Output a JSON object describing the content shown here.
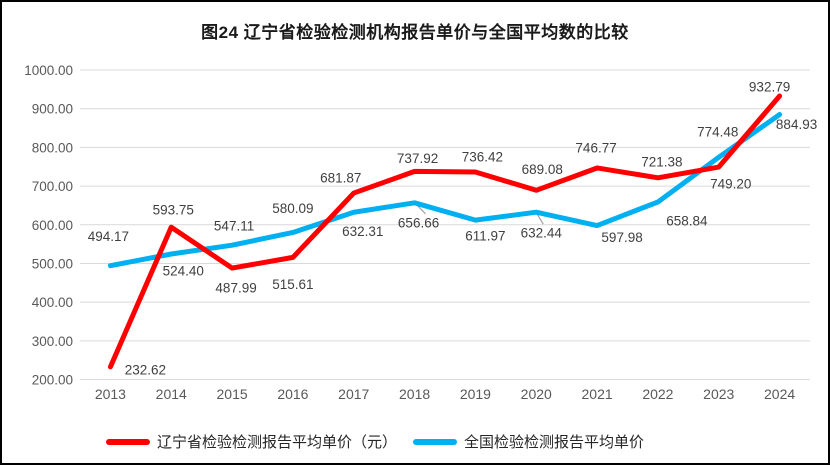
{
  "page": {
    "title": "图24 辽宁省检验检测机构报告单价与全国平均数的比较"
  },
  "chart_data": {
    "type": "line",
    "title": "图24 辽宁省检验检测机构报告单价与全国平均数的比较",
    "categories": [
      "2013",
      "2014",
      "2015",
      "2016",
      "2017",
      "2018",
      "2019",
      "2020",
      "2021",
      "2022",
      "2023",
      "2024"
    ],
    "series": [
      {
        "name": "辽宁省检验检测报告平均单价（元）",
        "color": "#FF0000",
        "values": [
          232.62,
          593.75,
          487.99,
          515.61,
          681.87,
          737.92,
          736.42,
          689.08,
          746.77,
          721.38,
          749.2,
          932.79
        ],
        "label_offsets": [
          [
            35,
            3
          ],
          [
            2,
            -17
          ],
          [
            4,
            20
          ],
          [
            0,
            27
          ],
          [
            -13,
            -15
          ],
          [
            3,
            -13
          ],
          [
            7,
            -15
          ],
          [
            6,
            -21
          ],
          [
            -1,
            -20
          ],
          [
            4,
            -16
          ],
          [
            12,
            17
          ],
          [
            -10,
            -9
          ]
        ],
        "leaders": {}
      },
      {
        "name": "全国检验检测报告平均单价",
        "color": "#00B0F0",
        "values": [
          494.17,
          524.4,
          547.11,
          580.09,
          632.31,
          656.66,
          611.97,
          632.44,
          597.98,
          658.84,
          774.48,
          884.93
        ],
        "label_offsets": [
          [
            -2,
            -29
          ],
          [
            12,
            17
          ],
          [
            2,
            -19
          ],
          [
            0,
            -24
          ],
          [
            9,
            19
          ],
          [
            4,
            20
          ],
          [
            10,
            16
          ],
          [
            5,
            21
          ],
          [
            25,
            12
          ],
          [
            29,
            19
          ],
          [
            -1,
            -25
          ],
          [
            17,
            10
          ]
        ],
        "leaders": {
          "5": [
            [
              1,
              1
            ],
            [
              11,
              11
            ]
          ],
          "7": [
            [
              1,
              2
            ],
            [
              7,
              12
            ]
          ]
        }
      }
    ],
    "xlabel": "",
    "ylabel": "",
    "ylim": [
      200,
      1000
    ],
    "ytick_step": 100,
    "ytick_format_decimals": 2,
    "value_label_decimals": 2,
    "grid": "horizontal",
    "legend_position": "bottom",
    "gridline_color": "#D9D9D9",
    "axis_text_color": "#595959",
    "value_label_color": "#404040",
    "leader_color": "#A6A6A6"
  }
}
